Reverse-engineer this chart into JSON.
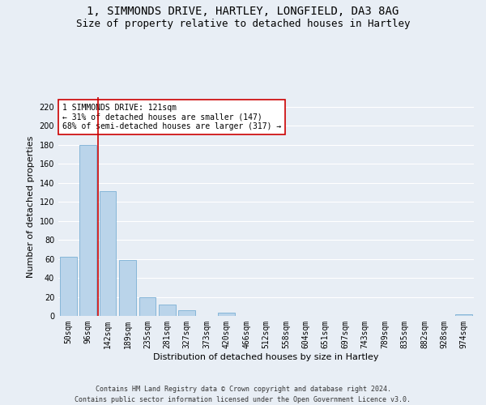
{
  "title1": "1, SIMMONDS DRIVE, HARTLEY, LONGFIELD, DA3 8AG",
  "title2": "Size of property relative to detached houses in Hartley",
  "xlabel": "Distribution of detached houses by size in Hartley",
  "ylabel": "Number of detached properties",
  "footer1": "Contains HM Land Registry data © Crown copyright and database right 2024.",
  "footer2": "Contains public sector information licensed under the Open Government Licence v3.0.",
  "categories": [
    "50sqm",
    "96sqm",
    "142sqm",
    "189sqm",
    "235sqm",
    "281sqm",
    "327sqm",
    "373sqm",
    "420sqm",
    "466sqm",
    "512sqm",
    "558sqm",
    "604sqm",
    "651sqm",
    "697sqm",
    "743sqm",
    "789sqm",
    "835sqm",
    "882sqm",
    "928sqm",
    "974sqm"
  ],
  "values": [
    62,
    180,
    131,
    59,
    20,
    12,
    6,
    0,
    3,
    0,
    0,
    0,
    0,
    0,
    0,
    0,
    0,
    0,
    0,
    0,
    2
  ],
  "bar_color": "#bad4ea",
  "bar_edge_color": "#7aafd4",
  "vline_x": 1.5,
  "vline_color": "#cc0000",
  "annotation_text": "1 SIMMONDS DRIVE: 121sqm\n← 31% of detached houses are smaller (147)\n68% of semi-detached houses are larger (317) →",
  "annotation_box_color": "#ffffff",
  "annotation_box_edge_color": "#cc0000",
  "ylim": [
    0,
    230
  ],
  "yticks": [
    0,
    20,
    40,
    60,
    80,
    100,
    120,
    140,
    160,
    180,
    200,
    220
  ],
  "bg_color": "#e8eef5",
  "plot_bg_color": "#e8eef5",
  "grid_color": "#ffffff",
  "title1_fontsize": 10,
  "title2_fontsize": 9,
  "tick_fontsize": 7,
  "label_fontsize": 8,
  "annotation_fontsize": 7,
  "footer_fontsize": 6
}
